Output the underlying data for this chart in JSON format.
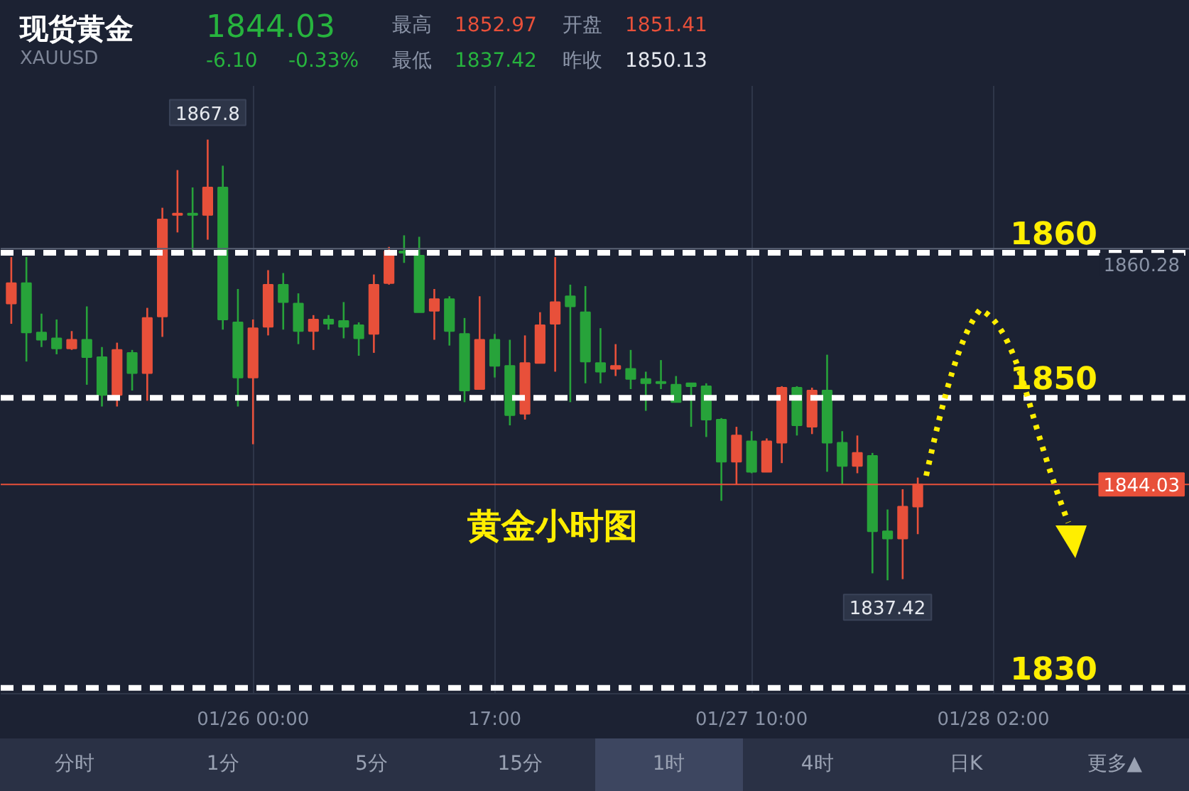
{
  "chart_data": {
    "type": "candlestick",
    "title": "现货黄金",
    "subtitle": "XAUUSD",
    "categories": [
      null,
      null,
      null,
      null,
      null,
      null,
      null,
      null,
      null,
      null,
      null,
      null,
      null,
      null,
      null,
      null,
      "01/26 00:00",
      null,
      null,
      null,
      null,
      null,
      null,
      null,
      null,
      null,
      null,
      null,
      null,
      null,
      null,
      null,
      "17:00",
      null,
      null,
      null,
      null,
      null,
      null,
      null,
      null,
      null,
      null,
      null,
      null,
      null,
      null,
      null,
      null,
      "01/27 10:00",
      null,
      null,
      null,
      null,
      null,
      null,
      null,
      null,
      null,
      null,
      null,
      null,
      null,
      null,
      null,
      "01/28 02:00"
    ],
    "ohlc": [
      [
        1856.5,
        1859.7,
        1855.1,
        1857.9
      ],
      [
        1857.9,
        1859.7,
        1852.5,
        1854.5
      ],
      [
        1854.5,
        1855.8,
        1853.5,
        1854.0
      ],
      [
        1854.1,
        1855.4,
        1853.0,
        1853.4
      ],
      [
        1853.4,
        1854.6,
        1853.3,
        1854.0
      ],
      [
        1854.0,
        1856.3,
        1850.9,
        1852.8
      ],
      [
        1852.8,
        1853.5,
        1849.4,
        1850.2
      ],
      [
        1850.2,
        1853.8,
        1849.4,
        1853.3
      ],
      [
        1853.1,
        1853.3,
        1850.5,
        1851.7
      ],
      [
        1851.7,
        1856.2,
        1849.8,
        1855.5
      ],
      [
        1855.6,
        1863.1,
        1854.2,
        1862.3
      ],
      [
        1862.6,
        1865.7,
        1861.4,
        1862.7
      ],
      [
        1862.7,
        1864.5,
        1860.1,
        1862.6
      ],
      [
        1862.6,
        1867.8,
        1860.9,
        1864.5
      ],
      [
        1864.5,
        1866.0,
        1854.7,
        1855.4
      ],
      [
        1855.2,
        1857.5,
        1849.4,
        1851.4
      ],
      [
        1851.4,
        1855.4,
        1846.8,
        1854.8
      ],
      [
        1854.9,
        1858.8,
        1854.3,
        1857.8
      ],
      [
        1857.8,
        1858.6,
        1854.7,
        1856.6
      ],
      [
        1856.5,
        1857.2,
        1853.7,
        1854.6
      ],
      [
        1854.6,
        1855.7,
        1853.3,
        1855.4
      ],
      [
        1855.4,
        1855.7,
        1854.7,
        1855.1
      ],
      [
        1855.3,
        1856.6,
        1854.1,
        1854.9
      ],
      [
        1855.0,
        1855.2,
        1852.9,
        1854.1
      ],
      [
        1854.4,
        1858.5,
        1853.1,
        1857.8
      ],
      [
        1857.9,
        1860.4,
        1857.8,
        1860.1
      ],
      [
        1860.1,
        1861.2,
        1859.3,
        1860.0
      ],
      [
        1859.8,
        1861.1,
        1855.9,
        1855.9
      ],
      [
        1856.0,
        1857.5,
        1854.0,
        1856.8
      ],
      [
        1856.8,
        1857.0,
        1853.6,
        1854.6
      ],
      [
        1854.4,
        1855.5,
        1849.7,
        1850.5
      ],
      [
        1850.6,
        1857.0,
        1850.6,
        1854.0
      ],
      [
        1854.0,
        1854.4,
        1851.4,
        1852.2
      ],
      [
        1852.2,
        1854.0,
        1848.1,
        1848.8
      ],
      [
        1848.9,
        1854.3,
        1848.5,
        1852.4
      ],
      [
        1852.4,
        1855.9,
        1852.4,
        1855.0
      ],
      [
        1855.1,
        1859.7,
        1851.8,
        1856.6
      ],
      [
        1857.0,
        1857.8,
        1849.7,
        1856.3
      ],
      [
        1855.9,
        1857.7,
        1851.0,
        1852.5
      ],
      [
        1852.4,
        1854.8,
        1851.0,
        1851.8
      ],
      [
        1852.0,
        1853.7,
        1851.5,
        1852.2
      ],
      [
        1852.0,
        1853.3,
        1850.6,
        1851.3
      ],
      [
        1851.3,
        1851.8,
        1849.1,
        1851.0
      ],
      [
        1851.1,
        1852.6,
        1850.6,
        1851.0
      ],
      [
        1850.9,
        1851.5,
        1849.7,
        1849.7
      ],
      [
        1851.0,
        1851.0,
        1848.0,
        1850.8
      ],
      [
        1850.8,
        1851.0,
        1847.3,
        1848.5
      ],
      [
        1848.5,
        1848.6,
        1842.9,
        1845.6
      ],
      [
        1845.6,
        1848.0,
        1844.0,
        1847.4
      ],
      [
        1847.0,
        1847.7,
        1844.8,
        1844.9
      ],
      [
        1844.9,
        1847.2,
        1844.9,
        1847.0
      ],
      [
        1846.9,
        1850.8,
        1845.5,
        1850.7
      ],
      [
        1850.7,
        1850.8,
        1847.4,
        1848.1
      ],
      [
        1848.0,
        1850.7,
        1847.5,
        1850.5
      ],
      [
        1850.5,
        1852.97,
        1844.9,
        1846.9
      ],
      [
        1846.9,
        1847.7,
        1844.0,
        1845.3
      ],
      [
        1845.3,
        1847.4,
        1844.8,
        1846.2
      ],
      [
        1846.0,
        1846.2,
        1837.9,
        1840.8
      ],
      [
        1840.8,
        1842.3,
        1837.42,
        1840.3
      ],
      [
        1840.3,
        1843.7,
        1837.5,
        1842.5
      ],
      [
        1842.5,
        1844.5,
        1840.6,
        1844.03
      ],
      null,
      null,
      null,
      null,
      null
    ],
    "colors": [
      "#e8503a",
      "#27a33a",
      "#27a33a",
      "#27a33a",
      "#e8503a",
      "#27a33a",
      "#27a33a",
      "#e8503a",
      "#27a33a",
      "#e8503a",
      "#e8503a",
      "#e8503a",
      "#27a33a",
      "#e8503a",
      "#27a33a",
      "#27a33a",
      "#e8503a",
      "#e8503a",
      "#27a33a",
      "#27a33a",
      "#e8503a",
      "#27a33a",
      "#27a33a",
      "#27a33a",
      "#e8503a",
      "#e8503a",
      "#27a33a",
      "#27a33a",
      "#e8503a",
      "#27a33a",
      "#27a33a",
      "#e8503a",
      "#27a33a",
      "#27a33a",
      "#e8503a",
      "#e8503a",
      "#e8503a",
      "#27a33a",
      "#27a33a",
      "#27a33a",
      "#e8503a",
      "#27a33a",
      "#27a33a",
      "#27a33a",
      "#27a33a",
      "#27a33a",
      "#27a33a",
      "#27a33a",
      "#e8503a",
      "#27a33a",
      "#e8503a",
      "#e8503a",
      "#27a33a",
      "#e8503a",
      "#27a33a",
      "#27a33a",
      "#e8503a",
      "#27a33a",
      "#27a33a",
      "#e8503a",
      "#e8503a",
      null,
      null,
      null,
      null,
      null
    ],
    "ylim": [
      1829.6,
      1871.5
    ],
    "tick_labels": "x",
    "grid": "x",
    "ref_lines": [
      {
        "axis": "y",
        "value": 1860.28,
        "label": "1860.28",
        "color": "#5a6275",
        "line_style": "solid"
      },
      {
        "axis": "y",
        "value": 1844.03,
        "label": "1844.03",
        "color": "#e8503a",
        "line_style": "solid"
      },
      {
        "axis": "y",
        "value": 1860,
        "label": "1860",
        "color": "#ffffff",
        "line_style": "dashed"
      },
      {
        "axis": "y",
        "value": 1850,
        "label": "1850",
        "color": "#ffffff",
        "line_style": "dashed"
      },
      {
        "axis": "y",
        "value": 1830,
        "label": "1830",
        "color": "#ffffff",
        "line_style": "dashed"
      }
    ],
    "annotations": [
      "1844.03",
      "-6.10",
      "-0.33%",
      "最高",
      "1852.97",
      "开盘",
      "1851.41",
      "最低",
      "1837.42",
      "昨收",
      "1850.13",
      "黄金小时图",
      "分时",
      "1分",
      "5分",
      "15分",
      "1时",
      "4时",
      "日K",
      "更多▲",
      {
        "text": "1867.8",
        "y": 1867.8
      },
      {
        "text": "1837.42",
        "y": 1837.42
      }
    ]
  }
}
